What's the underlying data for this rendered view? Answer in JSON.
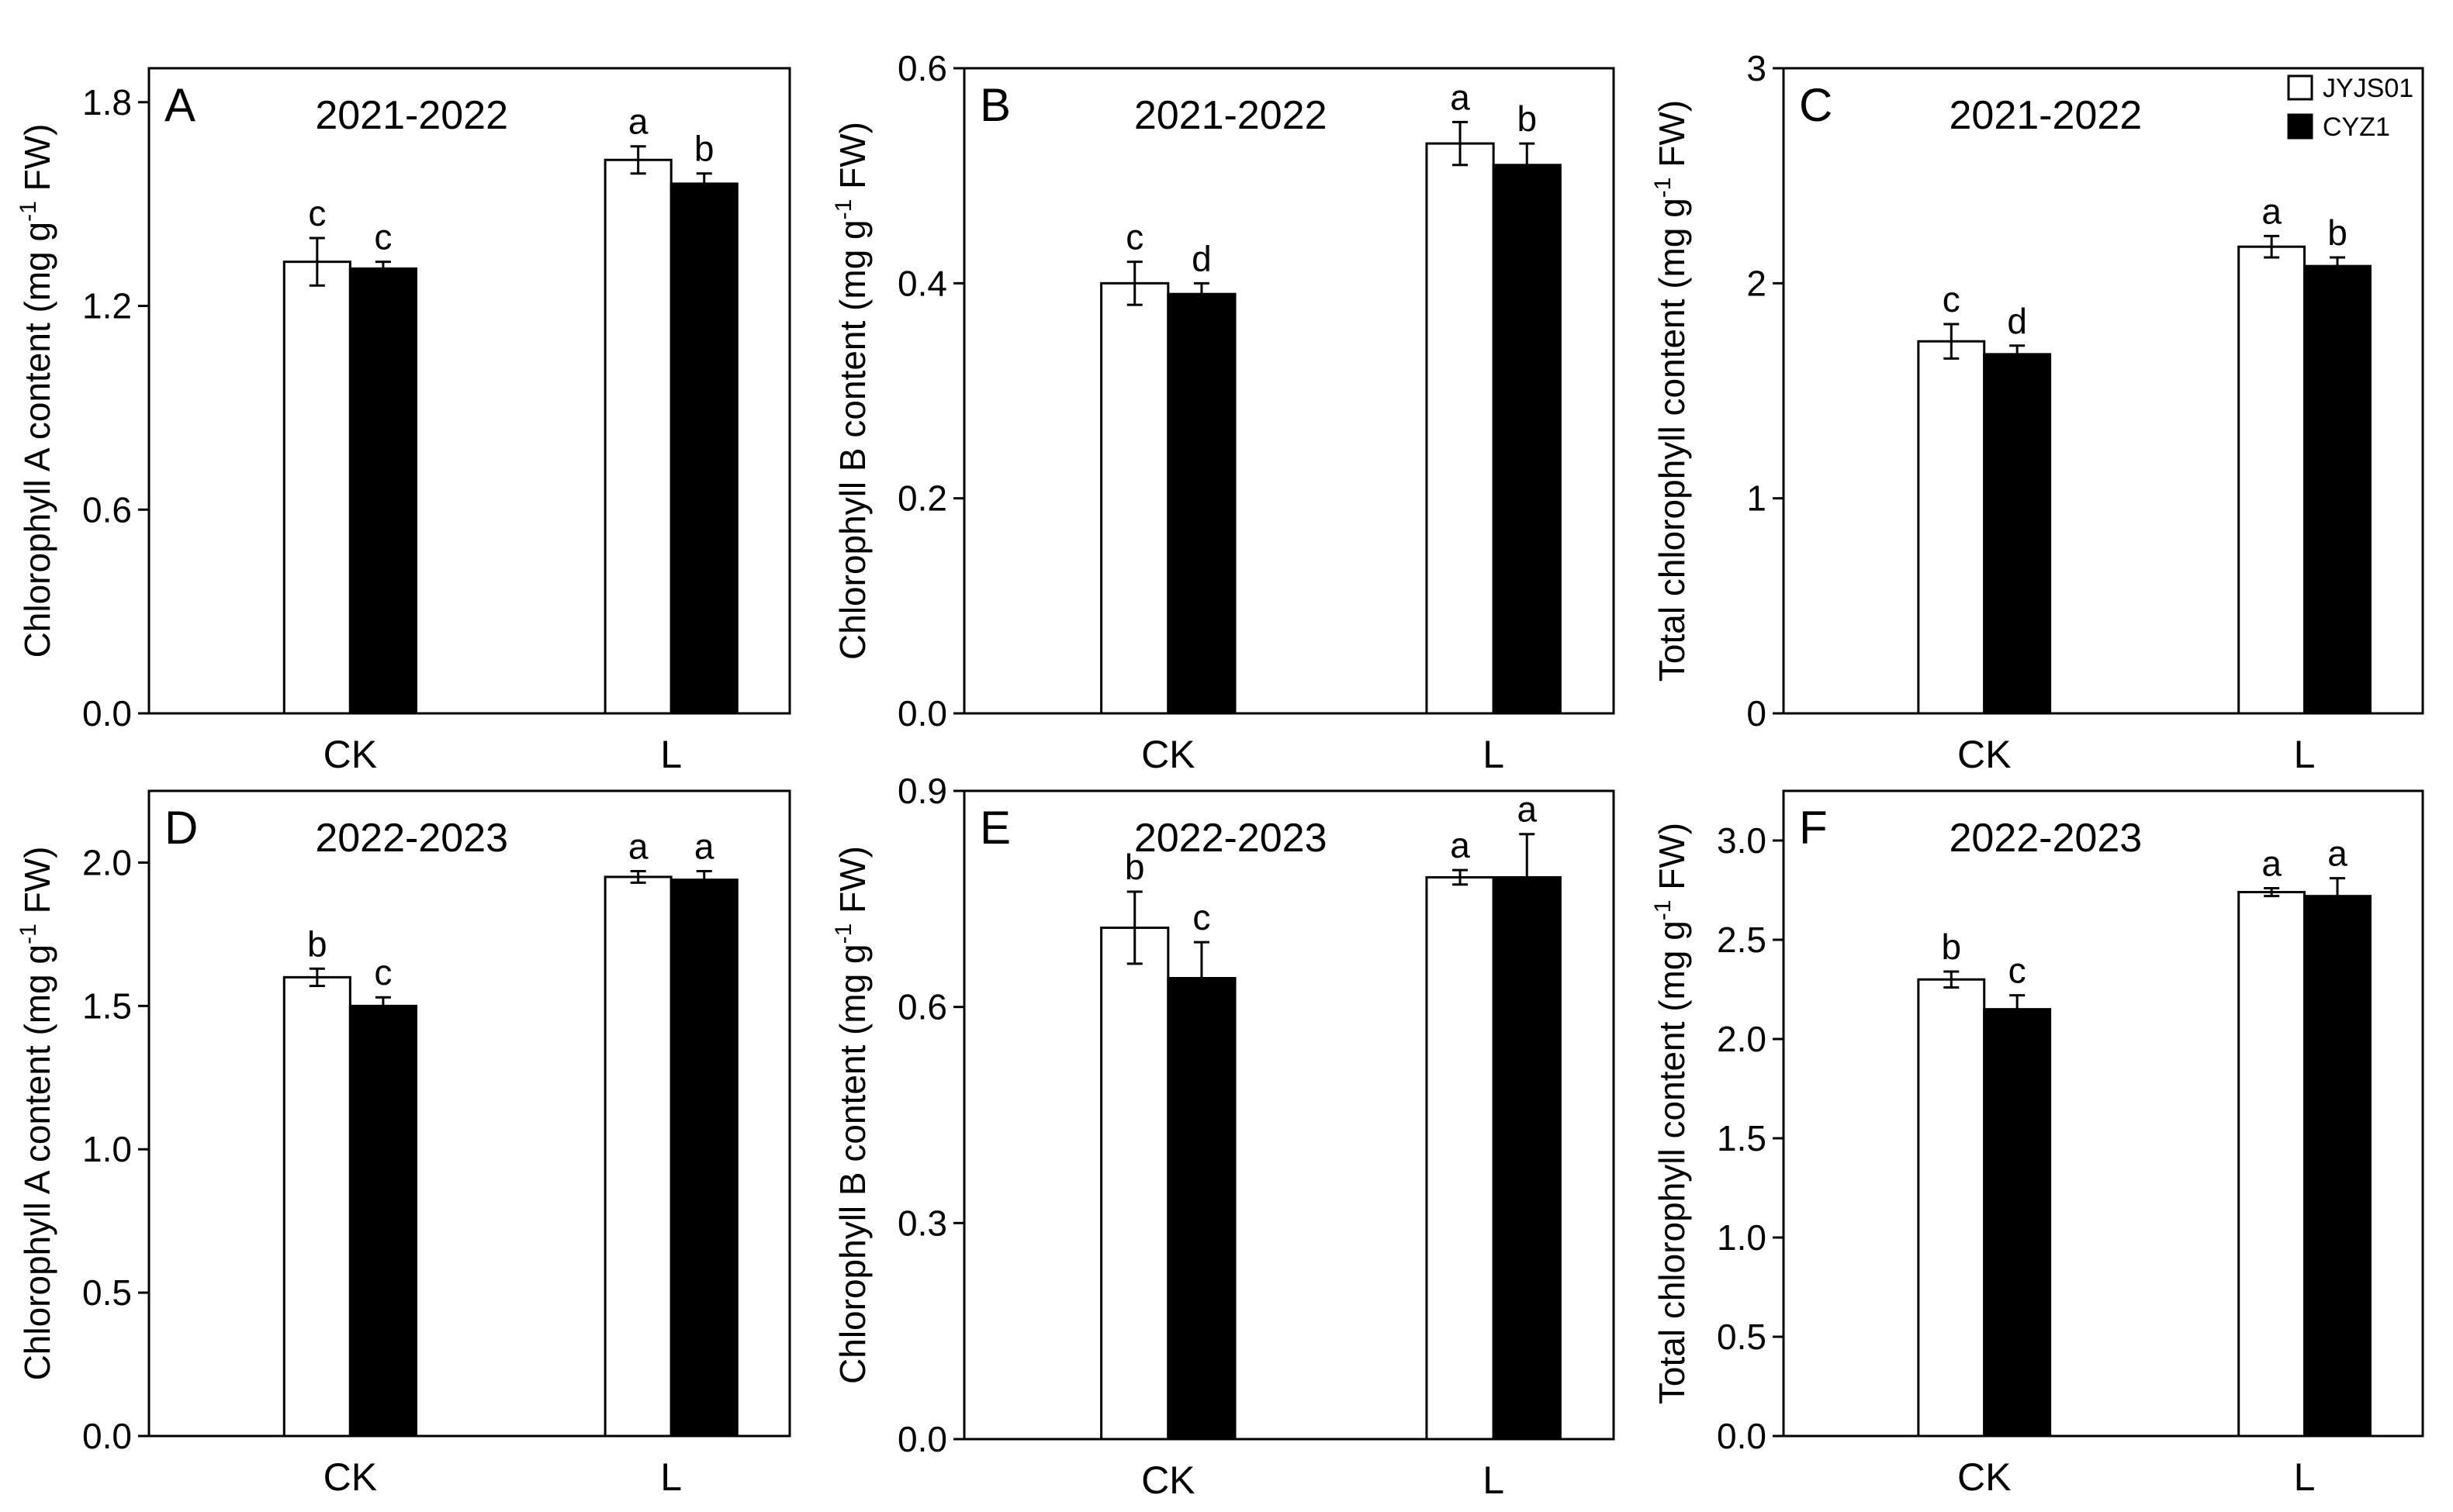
{
  "legend": {
    "entries": [
      {
        "name": "JYJS01",
        "color": "#ffffff"
      },
      {
        "name": "CYZ1",
        "color": "#000000"
      }
    ]
  },
  "chart_data": [
    {
      "type": "bar",
      "panel": "A",
      "title": "2021-2022",
      "ylabel_main": "Chlorophyll A content (mg g",
      "ylabel_sup": "-1",
      "ylabel_end": " FW)",
      "categories": [
        "CK",
        "L"
      ],
      "ylim": [
        0,
        1.9
      ],
      "ticks": [
        "0.0",
        "0.6",
        "1.2",
        "1.8"
      ],
      "series": [
        {
          "name": "JYJS01",
          "values": [
            1.33,
            1.63
          ],
          "errors": [
            0.07,
            0.04
          ],
          "letters": [
            "c",
            "a"
          ]
        },
        {
          "name": "CYZ1",
          "values": [
            1.31,
            1.56
          ],
          "errors": [
            0.02,
            0.03
          ],
          "letters": [
            "c",
            "b"
          ]
        }
      ]
    },
    {
      "type": "bar",
      "panel": "B",
      "title": "2021-2022",
      "ylabel_main": "Chlorophyll B content (mg g",
      "ylabel_sup": "-1",
      "ylabel_end": " FW)",
      "categories": [
        "CK",
        "L"
      ],
      "ylim": [
        0,
        0.6
      ],
      "ticks": [
        "0.0",
        "0.2",
        "0.4",
        "0.6"
      ],
      "series": [
        {
          "name": "JYJS01",
          "values": [
            0.4,
            0.53
          ],
          "errors": [
            0.02,
            0.02
          ],
          "letters": [
            "c",
            "a"
          ]
        },
        {
          "name": "CYZ1",
          "values": [
            0.39,
            0.51
          ],
          "errors": [
            0.01,
            0.02
          ],
          "letters": [
            "d",
            "b"
          ]
        }
      ]
    },
    {
      "type": "bar",
      "panel": "C",
      "title": "2021-2022",
      "ylabel_main": "Total chlorophyll content (mg g",
      "ylabel_sup": "-1",
      "ylabel_end": " FW)",
      "categories": [
        "CK",
        "L"
      ],
      "ylim": [
        0,
        3
      ],
      "ticks": [
        "0",
        "1",
        "2",
        "3"
      ],
      "series": [
        {
          "name": "JYJS01",
          "values": [
            1.73,
            2.17
          ],
          "errors": [
            0.08,
            0.05
          ],
          "letters": [
            "c",
            "a"
          ]
        },
        {
          "name": "CYZ1",
          "values": [
            1.67,
            2.08
          ],
          "errors": [
            0.04,
            0.04
          ],
          "letters": [
            "d",
            "b"
          ]
        }
      ]
    },
    {
      "type": "bar",
      "panel": "D",
      "title": "2022-2023",
      "ylabel_main": "Chlorophyll A content (mg g",
      "ylabel_sup": "-1",
      "ylabel_end": " FW)",
      "categories": [
        "CK",
        "L"
      ],
      "ylim": [
        0,
        2.25
      ],
      "ticks": [
        "0.0",
        "0.5",
        "1.0",
        "1.5",
        "2.0"
      ],
      "series": [
        {
          "name": "JYJS01",
          "values": [
            1.6,
            1.95
          ],
          "errors": [
            0.03,
            0.02
          ],
          "letters": [
            "b",
            "a"
          ]
        },
        {
          "name": "CYZ1",
          "values": [
            1.5,
            1.94
          ],
          "errors": [
            0.03,
            0.03
          ],
          "letters": [
            "c",
            "a"
          ]
        }
      ]
    },
    {
      "type": "bar",
      "panel": "E",
      "title": "2022-2023",
      "ylabel_main": "Chlorophyll B content (mg g",
      "ylabel_sup": "-1",
      "ylabel_end": " FW)",
      "categories": [
        "CK",
        "L"
      ],
      "ylim": [
        0,
        0.9
      ],
      "ticks": [
        "0.0",
        "0.3",
        "0.6",
        "0.9"
      ],
      "series": [
        {
          "name": "JYJS01",
          "values": [
            0.71,
            0.78
          ],
          "errors": [
            0.05,
            0.01
          ],
          "letters": [
            "b",
            "a"
          ]
        },
        {
          "name": "CYZ1",
          "values": [
            0.64,
            0.78
          ],
          "errors": [
            0.05,
            0.06
          ],
          "letters": [
            "c",
            "a"
          ]
        }
      ]
    },
    {
      "type": "bar",
      "panel": "F",
      "title": "2022-2023",
      "ylabel_main": "Total chlorophyll content (mg g",
      "ylabel_sup": "-1",
      "ylabel_end": " FW)",
      "categories": [
        "CK",
        "L"
      ],
      "ylim": [
        0,
        3.25
      ],
      "ticks": [
        "0.0",
        "0.5",
        "1.0",
        "1.5",
        "2.0",
        "2.5",
        "3.0"
      ],
      "series": [
        {
          "name": "JYJS01",
          "values": [
            2.3,
            2.74
          ],
          "errors": [
            0.04,
            0.02
          ],
          "letters": [
            "b",
            "a"
          ]
        },
        {
          "name": "CYZ1",
          "values": [
            2.15,
            2.72
          ],
          "errors": [
            0.07,
            0.09
          ],
          "letters": [
            "c",
            "a"
          ]
        }
      ]
    }
  ]
}
